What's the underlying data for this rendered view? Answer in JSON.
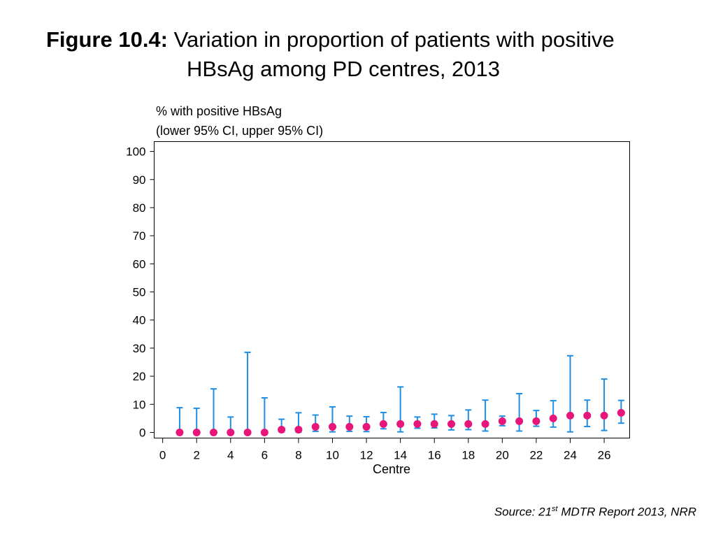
{
  "title": {
    "prefix": "Figure 10.4:",
    "line1": "Variation in proportion of patients with positive",
    "line2": "HBsAg among PD centres, 2013"
  },
  "source": {
    "pre": "Source: 21",
    "sup": "st",
    "post": " MDTR Report 2013, NRR"
  },
  "colors": {
    "ci_line": "#1f8ee3",
    "point": "#e8157a",
    "axis": "#000000"
  },
  "chart_data": {
    "type": "scatter",
    "ylabel_line1": "% with positive HBsAg",
    "ylabel_line2": "(lower 95% CI, upper 95% CI)",
    "xlabel": "Centre",
    "xlim": [
      -0.5,
      27.5
    ],
    "ylim": [
      -2,
      103.5
    ],
    "x_ticks": [
      0,
      2,
      4,
      6,
      8,
      10,
      12,
      14,
      16,
      18,
      20,
      22,
      24,
      26
    ],
    "y_ticks": [
      0,
      10,
      20,
      30,
      40,
      50,
      60,
      70,
      80,
      90,
      100
    ],
    "grid": false,
    "legend": "none",
    "points": [
      {
        "x": 1,
        "y": 0,
        "lower": 0,
        "upper": 8.8
      },
      {
        "x": 2,
        "y": 0,
        "lower": 0,
        "upper": 8.6
      },
      {
        "x": 3,
        "y": 0,
        "lower": 0,
        "upper": 15.5
      },
      {
        "x": 4,
        "y": 0,
        "lower": 0,
        "upper": 5.5
      },
      {
        "x": 5,
        "y": 0,
        "lower": 0,
        "upper": 28.5
      },
      {
        "x": 6,
        "y": 0,
        "lower": 0,
        "upper": 12.3
      },
      {
        "x": 7,
        "y": 1,
        "lower": 0.2,
        "upper": 4.7
      },
      {
        "x": 8,
        "y": 1,
        "lower": 0.1,
        "upper": 7
      },
      {
        "x": 9,
        "y": 2,
        "lower": 0.4,
        "upper": 6.2
      },
      {
        "x": 10,
        "y": 2,
        "lower": 0.2,
        "upper": 9.1
      },
      {
        "x": 11,
        "y": 2,
        "lower": 0.4,
        "upper": 5.8
      },
      {
        "x": 12,
        "y": 2,
        "lower": 0.3,
        "upper": 5.6
      },
      {
        "x": 13,
        "y": 3,
        "lower": 1.3,
        "upper": 7.1
      },
      {
        "x": 14,
        "y": 3,
        "lower": 0.2,
        "upper": 16.2
      },
      {
        "x": 15,
        "y": 3,
        "lower": 1.5,
        "upper": 5.5
      },
      {
        "x": 16,
        "y": 3,
        "lower": 1.6,
        "upper": 6.5
      },
      {
        "x": 17,
        "y": 3,
        "lower": 0.9,
        "upper": 6
      },
      {
        "x": 18,
        "y": 3,
        "lower": 1,
        "upper": 8
      },
      {
        "x": 19,
        "y": 3,
        "lower": 0.5,
        "upper": 11.5
      },
      {
        "x": 20,
        "y": 4,
        "lower": 2.4,
        "upper": 5.8
      },
      {
        "x": 21,
        "y": 4,
        "lower": 0.5,
        "upper": 13.8
      },
      {
        "x": 22,
        "y": 4,
        "lower": 2.2,
        "upper": 7.8
      },
      {
        "x": 23,
        "y": 5,
        "lower": 1.9,
        "upper": 11.3
      },
      {
        "x": 24,
        "y": 6,
        "lower": 0.2,
        "upper": 27.3
      },
      {
        "x": 25,
        "y": 6,
        "lower": 2.1,
        "upper": 11.5
      },
      {
        "x": 26,
        "y": 6,
        "lower": 0.7,
        "upper": 19
      },
      {
        "x": 27,
        "y": 7,
        "lower": 3.3,
        "upper": 11.4
      }
    ]
  }
}
